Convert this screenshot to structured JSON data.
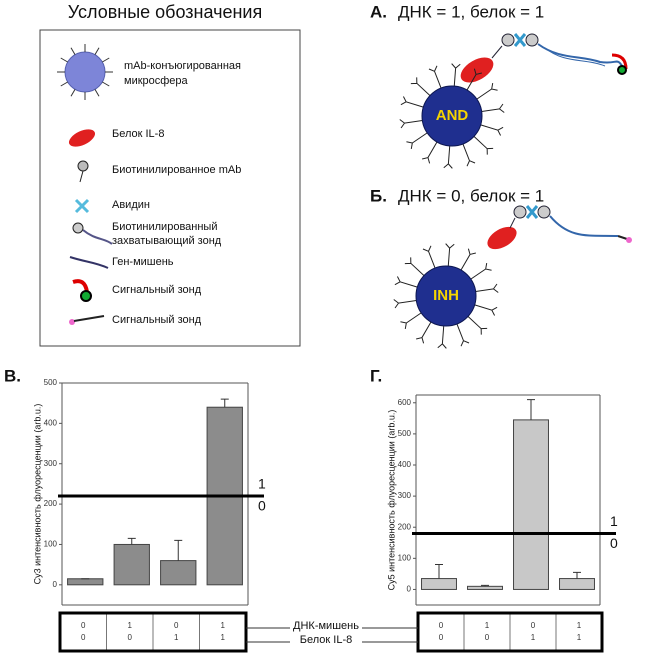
{
  "legend": {
    "title": "Условные обозначения",
    "items": [
      {
        "label": [
          "mAb-конъюгированная",
          "микросфера"
        ]
      },
      {
        "label": [
          "Белок IL-8"
        ]
      },
      {
        "label": [
          "Биотинилированное mAb"
        ]
      },
      {
        "label": [
          "Авидин"
        ]
      },
      {
        "label": [
          "Биотинилированный",
          "захватывающий зонд"
        ]
      },
      {
        "label": [
          "Ген-мишень"
        ]
      },
      {
        "label": [
          "Сигнальный зонд"
        ]
      },
      {
        "label": [
          "Сигнальный зонд"
        ]
      }
    ]
  },
  "panels": [
    {
      "letter": "А.",
      "caption": "ДНК = 1, белок = 1",
      "bead": "AND"
    },
    {
      "letter": "Б.",
      "caption": "ДНК = 0, белок = 1",
      "bead": "INH"
    }
  ],
  "row_labels": [
    "ДНК-мишень",
    "Белок IL-8"
  ],
  "chart_data": [
    {
      "type": "bar",
      "letter": "В.",
      "y_label": "Cy3 интенсивность флуоресценции (arb.u.)",
      "color": "#8c8c8c",
      "dna": [
        "0",
        "1",
        "0",
        "1"
      ],
      "protein": [
        "0",
        "0",
        "1",
        "1"
      ],
      "values": [
        15,
        100,
        60,
        440
      ],
      "errors": [
        0,
        15,
        50,
        20
      ],
      "ylim": [
        -50,
        500
      ],
      "yticks": [
        0,
        100,
        200,
        300,
        400,
        500
      ],
      "threshold": 220,
      "threshold_labels": [
        "1",
        "0"
      ]
    },
    {
      "type": "bar",
      "letter": "Г.",
      "y_label": "Cy5 интенсивность флуоресценции (arb.u.)",
      "color": "#c8c8c8",
      "dna": [
        "0",
        "1",
        "0",
        "1"
      ],
      "protein": [
        "0",
        "0",
        "1",
        "1"
      ],
      "values": [
        35,
        10,
        545,
        35
      ],
      "errors": [
        45,
        3,
        65,
        20
      ],
      "ylim": [
        -50,
        625
      ],
      "yticks": [
        0,
        100,
        200,
        300,
        400,
        500,
        600
      ],
      "threshold": 180,
      "threshold_labels": [
        "1",
        "0"
      ]
    }
  ]
}
